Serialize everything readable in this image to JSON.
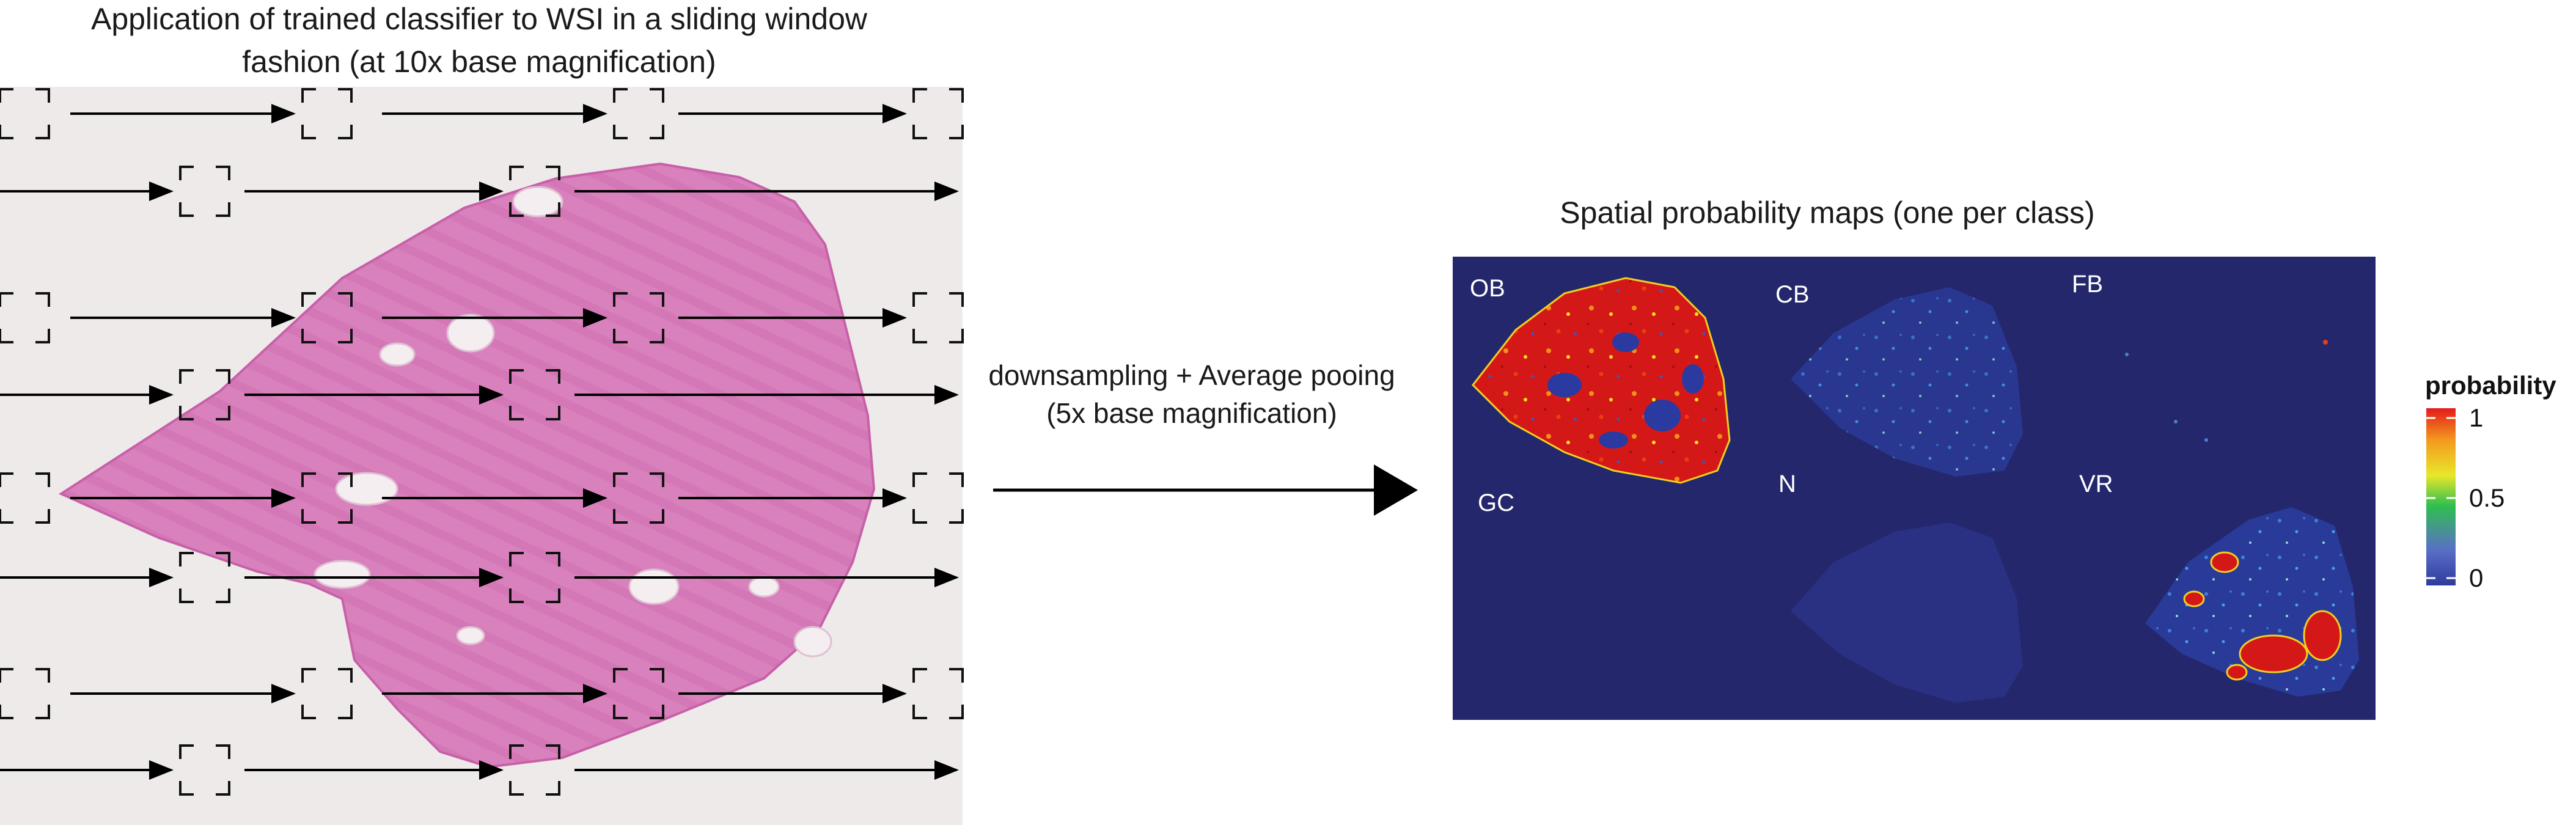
{
  "left_panel": {
    "title_line1": "Application of trained classifier to WSI in a sliding window",
    "title_line2": "fashion (at 10x base magnification)"
  },
  "middle": {
    "line1": "downsampling + Average pooing",
    "line2": "(5x base magnification)"
  },
  "right_panel": {
    "title": "Spatial probability maps (one per class)",
    "classes": [
      "OB",
      "CB",
      "FB",
      "GC",
      "N",
      "VR"
    ],
    "colorbar": {
      "title": "probability",
      "ticks": [
        "1",
        "0.5",
        "0"
      ]
    }
  },
  "colors": {
    "map_background": "#24276b",
    "tissue": "#d87ab8",
    "slide_background": "#eeeaea",
    "arrow": "#000000"
  }
}
